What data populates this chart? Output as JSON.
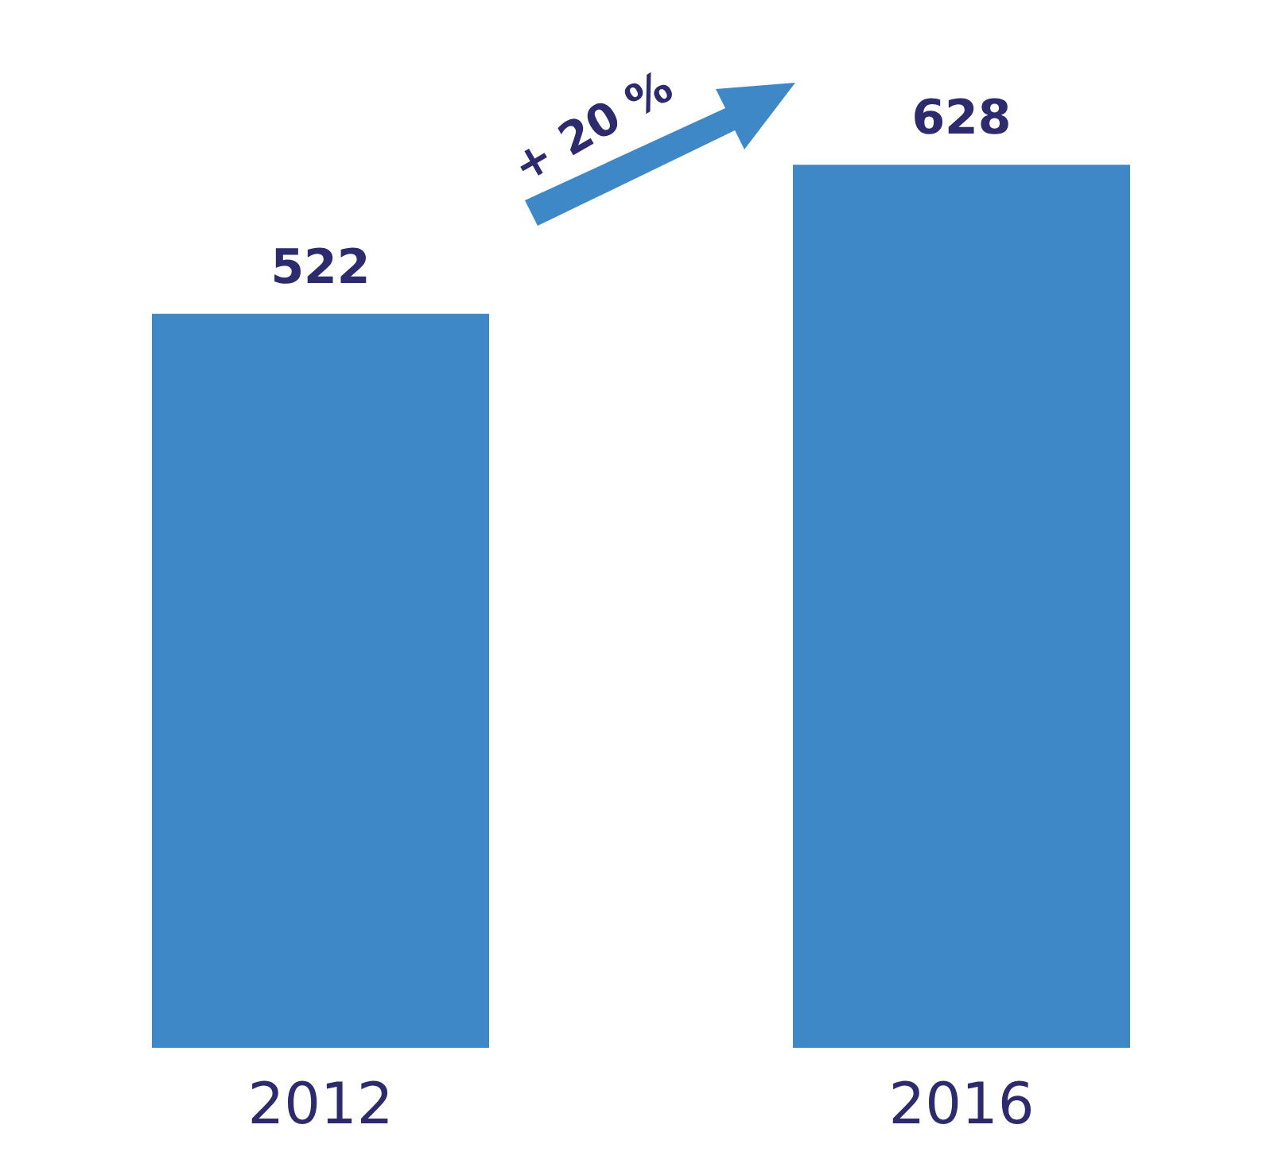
{
  "chart_data": {
    "type": "bar",
    "categories": [
      "2012",
      "2016"
    ],
    "values": [
      522,
      628
    ],
    "color": "#3f88c8",
    "data_labels": true,
    "annotations": [
      "+ 20 %"
    ]
  }
}
